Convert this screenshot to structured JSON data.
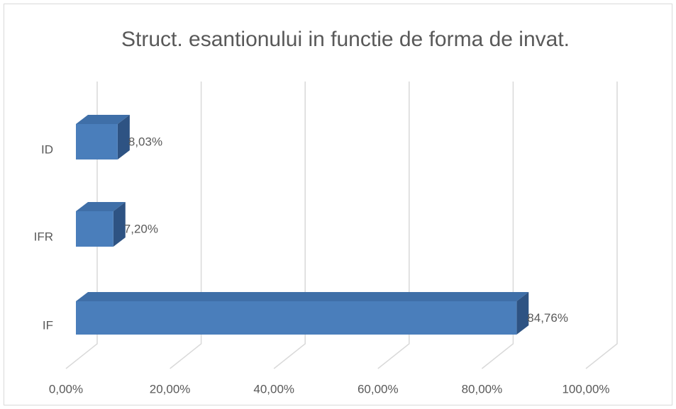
{
  "chart_data": {
    "type": "bar3d",
    "orientation": "horizontal",
    "title": "Struct. esantionului in functie de forma de invat.",
    "categories": [
      "ID",
      "IFR",
      "IF"
    ],
    "values": [
      8.03,
      7.2,
      84.76
    ],
    "value_labels": [
      "8,03%",
      "7,20%",
      "84,76%"
    ],
    "color": "#4a7ebb",
    "xlim": [
      0,
      100
    ],
    "xticks": [
      {
        "value": 0,
        "label": "0,00%"
      },
      {
        "value": 20,
        "label": "20,00%"
      },
      {
        "value": 40,
        "label": "40,00%"
      },
      {
        "value": 60,
        "label": "60,00%"
      },
      {
        "value": 80,
        "label": "80,00%"
      },
      {
        "value": 100,
        "label": "100,00%"
      }
    ],
    "grid": true
  }
}
